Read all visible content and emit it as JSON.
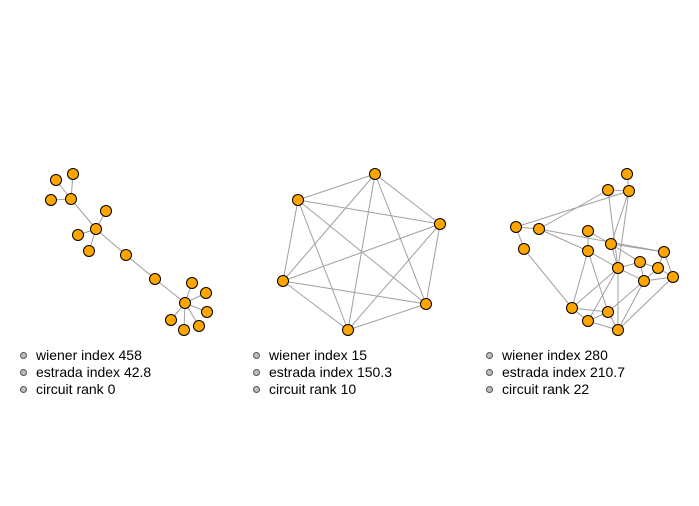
{
  "colors": {
    "node_fill": "#FFA500",
    "node_stroke": "#000000",
    "edge": "#a0a0a0",
    "bullet": "#bdbdbd"
  },
  "panels": [
    {
      "id": "tree",
      "stats": [
        {
          "name": "wiener index",
          "value": "458"
        },
        {
          "name": "estrada index",
          "value": "42.8"
        },
        {
          "name": "circuit rank",
          "value": "0"
        }
      ]
    },
    {
      "id": "complete",
      "stats": [
        {
          "name": "wiener index",
          "value": "15"
        },
        {
          "name": "estrada index",
          "value": "150.3"
        },
        {
          "name": "circuit rank",
          "value": "10"
        }
      ]
    },
    {
      "id": "dense",
      "stats": [
        {
          "name": "wiener index",
          "value": "280"
        },
        {
          "name": "estrada index",
          "value": "210.7"
        },
        {
          "name": "circuit rank",
          "value": "22"
        }
      ]
    }
  ]
}
